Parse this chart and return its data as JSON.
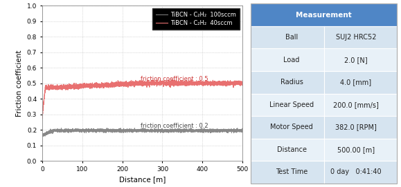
{
  "line1_label": "TiBCN - C₂H₂  100sccm",
  "line2_label": "TiBCN - C₂H₂  40sccm",
  "line1_color": "#888888",
  "line2_color": "#e87070",
  "annotation1_text": "friction coefficient : 0.2",
  "annotation2_text": "friction coefficient : 0.5",
  "annotation1_color": "#444444",
  "annotation2_color": "#cc3333",
  "xlabel": "Distance [m]",
  "ylabel": "Friction coefficient",
  "xlim": [
    0,
    500
  ],
  "ylim": [
    0.0,
    1.0
  ],
  "yticks": [
    0.0,
    0.1,
    0.2,
    0.3,
    0.4,
    0.5,
    0.6,
    0.7,
    0.8,
    0.9,
    1.0
  ],
  "xticks": [
    0,
    100,
    200,
    300,
    400,
    500
  ],
  "table_header": "Measurement",
  "table_header_bg": "#4f86c6",
  "table_header_color": "#ffffff",
  "table_row_bg1": "#d6e4f0",
  "table_row_bg2": "#e8f1f8",
  "table_rows": [
    [
      "Ball",
      "SUJ2 HRC52"
    ],
    [
      "Load",
      "2.0 [N]"
    ],
    [
      "Radius",
      "4.0 [mm]"
    ],
    [
      "Linear Speed",
      "200.0 [mm/s]"
    ],
    [
      "Motor Speed",
      "382.0 [RPM]"
    ],
    [
      "Distance",
      "500.00 [m]"
    ],
    [
      "Test Time",
      "0 day   0:41:40"
    ]
  ]
}
